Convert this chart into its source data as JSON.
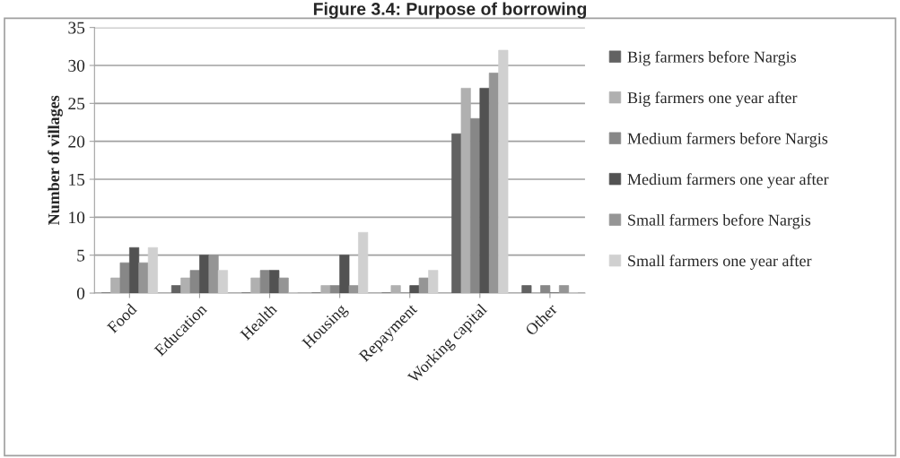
{
  "chart_data": {
    "type": "bar",
    "title": "Figure 3.4: Purpose of borrowing",
    "ylabel": "Number of villages",
    "categories": [
      "Food",
      "Education",
      "Health",
      "Housing",
      "Repayment",
      "Working capital",
      "Other"
    ],
    "series": [
      {
        "name": "Big farmers before Nargis",
        "color": "#626262",
        "values": [
          0,
          1,
          0,
          0,
          0,
          21,
          1
        ]
      },
      {
        "name": "Big farmers one year after",
        "color": "#b0b0b0",
        "values": [
          2,
          2,
          2,
          1,
          1,
          27,
          0
        ]
      },
      {
        "name": "Medium farmers before Nargis",
        "color": "#878787",
        "values": [
          4,
          3,
          3,
          1,
          0,
          23,
          1
        ]
      },
      {
        "name": "Medium farmers one year after",
        "color": "#525252",
        "values": [
          6,
          5,
          3,
          5,
          1,
          27,
          0
        ]
      },
      {
        "name": "Small farmers before Nargis",
        "color": "#959595",
        "values": [
          4,
          5,
          2,
          1,
          2,
          29,
          1
        ]
      },
      {
        "name": "Small farmers one year after",
        "color": "#d0d0d0",
        "values": [
          6,
          3,
          0,
          8,
          3,
          32,
          0
        ]
      }
    ],
    "ylim": [
      0,
      35
    ],
    "yticks": [
      0,
      5,
      10,
      15,
      20,
      25,
      30,
      35
    ],
    "grid": "y",
    "legend": "right"
  }
}
